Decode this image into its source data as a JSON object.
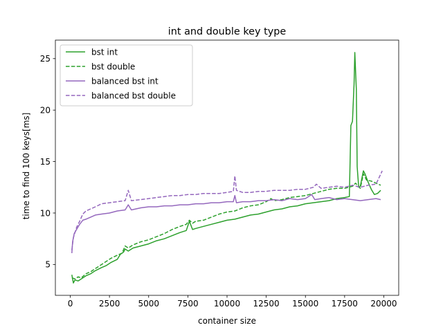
{
  "chart_data": {
    "type": "line",
    "title": "int and double key type",
    "xlabel": "container size",
    "ylabel": "time to find 100 keys[ms]",
    "xlim": [
      -950,
      20950
    ],
    "ylim": [
      2.0,
      26.8
    ],
    "x_ticks": [
      0,
      2500,
      5000,
      7500,
      10000,
      12500,
      15000,
      17500,
      20000
    ],
    "y_ticks": [
      5,
      10,
      15,
      20,
      25
    ],
    "grid": false,
    "legend": "top-left",
    "series": [
      {
        "name": "bst int",
        "color": "#2ca02c",
        "dash": "solid",
        "points": [
          [
            100,
            4.0
          ],
          [
            200,
            3.2
          ],
          [
            300,
            3.5
          ],
          [
            500,
            3.4
          ],
          [
            700,
            3.6
          ],
          [
            1000,
            3.9
          ],
          [
            1300,
            4.1
          ],
          [
            1600,
            4.4
          ],
          [
            2000,
            4.7
          ],
          [
            2300,
            4.9
          ],
          [
            2600,
            5.2
          ],
          [
            3000,
            5.5
          ],
          [
            3200,
            6.0
          ],
          [
            3400,
            6.2
          ],
          [
            3500,
            6.5
          ],
          [
            3700,
            6.3
          ],
          [
            4000,
            6.6
          ],
          [
            4500,
            6.8
          ],
          [
            5000,
            7.0
          ],
          [
            5500,
            7.3
          ],
          [
            6000,
            7.5
          ],
          [
            6500,
            7.8
          ],
          [
            7000,
            8.1
          ],
          [
            7400,
            8.3
          ],
          [
            7600,
            9.2
          ],
          [
            7800,
            8.4
          ],
          [
            8000,
            8.5
          ],
          [
            8500,
            8.7
          ],
          [
            9000,
            8.9
          ],
          [
            9500,
            9.1
          ],
          [
            10000,
            9.3
          ],
          [
            10500,
            9.4
          ],
          [
            11000,
            9.6
          ],
          [
            11500,
            9.8
          ],
          [
            12000,
            9.9
          ],
          [
            12500,
            10.1
          ],
          [
            13000,
            10.3
          ],
          [
            13500,
            10.4
          ],
          [
            14000,
            10.6
          ],
          [
            14500,
            10.7
          ],
          [
            15000,
            10.9
          ],
          [
            15500,
            11.0
          ],
          [
            16000,
            11.1
          ],
          [
            16500,
            11.2
          ],
          [
            17000,
            11.4
          ],
          [
            17500,
            11.5
          ],
          [
            17800,
            11.6
          ],
          [
            17900,
            18.5
          ],
          [
            18000,
            18.9
          ],
          [
            18100,
            22.5
          ],
          [
            18150,
            25.6
          ],
          [
            18250,
            22.0
          ],
          [
            18300,
            14.5
          ],
          [
            18400,
            12.5
          ],
          [
            18500,
            12.6
          ],
          [
            18700,
            14.1
          ],
          [
            18800,
            13.8
          ],
          [
            19000,
            13.0
          ],
          [
            19200,
            12.3
          ],
          [
            19400,
            11.8
          ],
          [
            19600,
            11.9
          ],
          [
            19800,
            12.2
          ]
        ]
      },
      {
        "name": "bst double",
        "color": "#2ca02c",
        "dash": "dashed",
        "points": [
          [
            100,
            3.7
          ],
          [
            300,
            3.6
          ],
          [
            500,
            3.8
          ],
          [
            700,
            3.7
          ],
          [
            1000,
            4.1
          ],
          [
            1300,
            4.3
          ],
          [
            1600,
            4.6
          ],
          [
            2000,
            5.0
          ],
          [
            2300,
            5.3
          ],
          [
            2600,
            5.6
          ],
          [
            3000,
            5.9
          ],
          [
            3300,
            6.1
          ],
          [
            3500,
            6.8
          ],
          [
            3700,
            6.6
          ],
          [
            4000,
            6.9
          ],
          [
            4500,
            7.2
          ],
          [
            5000,
            7.4
          ],
          [
            5500,
            7.7
          ],
          [
            6000,
            8.0
          ],
          [
            6500,
            8.4
          ],
          [
            7000,
            8.7
          ],
          [
            7400,
            8.9
          ],
          [
            7600,
            9.3
          ],
          [
            7800,
            9.0
          ],
          [
            8000,
            9.2
          ],
          [
            8500,
            9.3
          ],
          [
            9000,
            9.6
          ],
          [
            9500,
            9.9
          ],
          [
            10000,
            10.1
          ],
          [
            10500,
            10.2
          ],
          [
            11000,
            10.5
          ],
          [
            11500,
            10.7
          ],
          [
            12000,
            10.8
          ],
          [
            12500,
            11.1
          ],
          [
            12800,
            11.4
          ],
          [
            13000,
            11.2
          ],
          [
            13500,
            11.3
          ],
          [
            14000,
            11.5
          ],
          [
            14500,
            11.6
          ],
          [
            15000,
            11.7
          ],
          [
            15500,
            11.9
          ],
          [
            16000,
            12.1
          ],
          [
            16500,
            12.3
          ],
          [
            17000,
            12.4
          ],
          [
            17500,
            12.4
          ],
          [
            18000,
            12.6
          ],
          [
            18200,
            12.9
          ],
          [
            18500,
            12.4
          ],
          [
            18700,
            13.8
          ],
          [
            18900,
            13.2
          ],
          [
            19200,
            13.1
          ],
          [
            19500,
            12.9
          ],
          [
            19800,
            12.7
          ]
        ]
      },
      {
        "name": "balanced bst int",
        "color": "#9467bd",
        "dash": "solid",
        "points": [
          [
            100,
            6.1
          ],
          [
            150,
            7.2
          ],
          [
            250,
            8.0
          ],
          [
            400,
            8.4
          ],
          [
            600,
            8.9
          ],
          [
            800,
            9.3
          ],
          [
            1000,
            9.4
          ],
          [
            1300,
            9.6
          ],
          [
            1600,
            9.8
          ],
          [
            2000,
            9.9
          ],
          [
            2500,
            10.0
          ],
          [
            3000,
            10.2
          ],
          [
            3500,
            10.3
          ],
          [
            3700,
            10.8
          ],
          [
            3900,
            10.3
          ],
          [
            4500,
            10.5
          ],
          [
            5000,
            10.6
          ],
          [
            5500,
            10.6
          ],
          [
            6000,
            10.7
          ],
          [
            6500,
            10.7
          ],
          [
            7000,
            10.8
          ],
          [
            7500,
            10.8
          ],
          [
            8000,
            10.9
          ],
          [
            8500,
            10.9
          ],
          [
            9000,
            11.0
          ],
          [
            9500,
            11.0
          ],
          [
            10000,
            11.1
          ],
          [
            10400,
            11.1
          ],
          [
            10500,
            11.7
          ],
          [
            10600,
            11.0
          ],
          [
            11000,
            11.1
          ],
          [
            11500,
            11.1
          ],
          [
            12000,
            11.2
          ],
          [
            12500,
            11.2
          ],
          [
            13000,
            11.3
          ],
          [
            13500,
            11.2
          ],
          [
            14000,
            11.4
          ],
          [
            14500,
            11.3
          ],
          [
            15000,
            11.4
          ],
          [
            15400,
            11.8
          ],
          [
            15600,
            11.3
          ],
          [
            16000,
            11.4
          ],
          [
            16500,
            11.5
          ],
          [
            17000,
            11.3
          ],
          [
            17500,
            11.4
          ],
          [
            18000,
            11.3
          ],
          [
            18500,
            11.2
          ],
          [
            19000,
            11.3
          ],
          [
            19500,
            11.4
          ],
          [
            19800,
            11.3
          ]
        ]
      },
      {
        "name": "balanced bst double",
        "color": "#9467bd",
        "dash": "dashed",
        "points": [
          [
            100,
            6.4
          ],
          [
            200,
            7.6
          ],
          [
            400,
            8.6
          ],
          [
            600,
            9.2
          ],
          [
            800,
            9.9
          ],
          [
            1000,
            10.2
          ],
          [
            1300,
            10.4
          ],
          [
            1600,
            10.6
          ],
          [
            2000,
            10.9
          ],
          [
            2500,
            11.0
          ],
          [
            3000,
            11.1
          ],
          [
            3500,
            11.2
          ],
          [
            3700,
            12.2
          ],
          [
            3900,
            11.2
          ],
          [
            4500,
            11.3
          ],
          [
            5000,
            11.4
          ],
          [
            5500,
            11.5
          ],
          [
            6000,
            11.6
          ],
          [
            6500,
            11.7
          ],
          [
            7000,
            11.7
          ],
          [
            7500,
            11.8
          ],
          [
            8000,
            11.8
          ],
          [
            8500,
            11.9
          ],
          [
            9000,
            11.9
          ],
          [
            9500,
            11.9
          ],
          [
            10000,
            12.0
          ],
          [
            10400,
            12.1
          ],
          [
            10500,
            13.6
          ],
          [
            10600,
            12.2
          ],
          [
            11000,
            12.0
          ],
          [
            11500,
            12.0
          ],
          [
            12000,
            12.1
          ],
          [
            12500,
            12.1
          ],
          [
            13000,
            12.2
          ],
          [
            13500,
            12.2
          ],
          [
            14000,
            12.2
          ],
          [
            14500,
            12.3
          ],
          [
            15000,
            12.3
          ],
          [
            15500,
            12.5
          ],
          [
            15700,
            12.8
          ],
          [
            16000,
            12.4
          ],
          [
            16500,
            12.5
          ],
          [
            17000,
            12.6
          ],
          [
            17500,
            12.5
          ],
          [
            18000,
            12.7
          ],
          [
            18500,
            12.5
          ],
          [
            19000,
            12.7
          ],
          [
            19500,
            12.8
          ],
          [
            19900,
            14.1
          ]
        ]
      }
    ]
  }
}
